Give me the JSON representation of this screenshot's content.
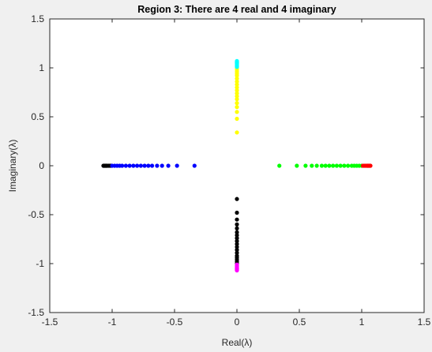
{
  "chart_data": {
    "type": "scatter",
    "title": "Region 3: There are 4 real and 4 imaginary",
    "xlabel": "Real(λ)",
    "ylabel": "Imaginary(λ)",
    "xlim": [
      -1.5,
      1.5
    ],
    "ylim": [
      -1.5,
      1.5
    ],
    "x_ticks": [
      -1.5,
      -1,
      -0.5,
      0,
      0.5,
      1,
      1.5
    ],
    "y_ticks": [
      -1.5,
      -1,
      -0.5,
      0,
      0.5,
      1,
      1.5
    ],
    "x_tick_labels": [
      "-1.5",
      "-1",
      "-0.5",
      "0",
      "0.5",
      "1",
      "1.5"
    ],
    "y_tick_labels": [
      "-1.5",
      "-1",
      "-0.5",
      "0",
      "0.5",
      "1",
      "1.5"
    ],
    "grid": false,
    "series": [
      {
        "color": "#000000",
        "points": [
          [
            -1.07,
            0
          ],
          [
            -1.065,
            0
          ],
          [
            -1.06,
            0
          ],
          [
            -1.055,
            0
          ],
          [
            -1.05,
            0
          ],
          [
            -1.045,
            0
          ],
          [
            -1.04,
            0
          ],
          [
            -1.03,
            0
          ],
          [
            -1.02,
            0
          ],
          [
            -1.01,
            0
          ]
        ]
      },
      {
        "color": "#0000ff",
        "points": [
          [
            -1.0,
            0
          ],
          [
            -0.98,
            0
          ],
          [
            -0.96,
            0
          ],
          [
            -0.94,
            0
          ],
          [
            -0.92,
            0
          ],
          [
            -0.89,
            0
          ],
          [
            -0.86,
            0
          ],
          [
            -0.83,
            0
          ],
          [
            -0.8,
            0
          ],
          [
            -0.77,
            0
          ],
          [
            -0.74,
            0
          ],
          [
            -0.71,
            0
          ],
          [
            -0.68,
            0
          ],
          [
            -0.64,
            0
          ],
          [
            -0.6,
            0
          ],
          [
            -0.55,
            0
          ],
          [
            -0.48,
            0
          ],
          [
            -0.34,
            0
          ]
        ]
      },
      {
        "color": "#00ff00",
        "points": [
          [
            0.34,
            0
          ],
          [
            0.48,
            0
          ],
          [
            0.55,
            0
          ],
          [
            0.6,
            0
          ],
          [
            0.64,
            0
          ],
          [
            0.68,
            0
          ],
          [
            0.71,
            0
          ],
          [
            0.74,
            0
          ],
          [
            0.77,
            0
          ],
          [
            0.8,
            0
          ],
          [
            0.83,
            0
          ],
          [
            0.86,
            0
          ],
          [
            0.89,
            0
          ],
          [
            0.92,
            0
          ],
          [
            0.94,
            0
          ],
          [
            0.96,
            0
          ],
          [
            0.98,
            0
          ],
          [
            1.0,
            0
          ]
        ]
      },
      {
        "color": "#ff0000",
        "points": [
          [
            1.01,
            0
          ],
          [
            1.02,
            0
          ],
          [
            1.03,
            0
          ],
          [
            1.04,
            0
          ],
          [
            1.045,
            0
          ],
          [
            1.05,
            0
          ],
          [
            1.055,
            0
          ],
          [
            1.06,
            0
          ],
          [
            1.065,
            0
          ],
          [
            1.07,
            0
          ]
        ]
      },
      {
        "color": "#ffff00",
        "points": [
          [
            0,
            0.34
          ],
          [
            0,
            0.48
          ],
          [
            0,
            0.55
          ],
          [
            0,
            0.6
          ],
          [
            0,
            0.64
          ],
          [
            0,
            0.68
          ],
          [
            0,
            0.71
          ],
          [
            0,
            0.74
          ],
          [
            0,
            0.77
          ],
          [
            0,
            0.8
          ],
          [
            0,
            0.83
          ],
          [
            0,
            0.86
          ],
          [
            0,
            0.89
          ],
          [
            0,
            0.92
          ],
          [
            0,
            0.94
          ],
          [
            0,
            0.96
          ],
          [
            0,
            0.98
          ],
          [
            0,
            1.0
          ]
        ]
      },
      {
        "color": "#00ffff",
        "points": [
          [
            0,
            1.01
          ],
          [
            0,
            1.02
          ],
          [
            0,
            1.03
          ],
          [
            0,
            1.04
          ],
          [
            0,
            1.045
          ],
          [
            0,
            1.05
          ],
          [
            0,
            1.055
          ],
          [
            0,
            1.06
          ],
          [
            0,
            1.065
          ],
          [
            0,
            1.07
          ]
        ]
      },
      {
        "color": "#000000",
        "points": [
          [
            0,
            -0.34
          ],
          [
            0,
            -0.48
          ],
          [
            0,
            -0.55
          ],
          [
            0,
            -0.6
          ],
          [
            0,
            -0.64
          ],
          [
            0,
            -0.68
          ],
          [
            0,
            -0.71
          ],
          [
            0,
            -0.74
          ],
          [
            0,
            -0.77
          ],
          [
            0,
            -0.8
          ],
          [
            0,
            -0.83
          ],
          [
            0,
            -0.86
          ],
          [
            0,
            -0.89
          ],
          [
            0,
            -0.92
          ],
          [
            0,
            -0.94
          ],
          [
            0,
            -0.96
          ],
          [
            0,
            -0.98
          ],
          [
            0,
            -1.0
          ]
        ]
      },
      {
        "color": "#ff00ff",
        "points": [
          [
            0,
            -1.01
          ],
          [
            0,
            -1.02
          ],
          [
            0,
            -1.03
          ],
          [
            0,
            -1.04
          ],
          [
            0,
            -1.045
          ],
          [
            0,
            -1.05
          ],
          [
            0,
            -1.055
          ],
          [
            0,
            -1.06
          ],
          [
            0,
            -1.065
          ],
          [
            0,
            -1.07
          ]
        ]
      }
    ]
  }
}
